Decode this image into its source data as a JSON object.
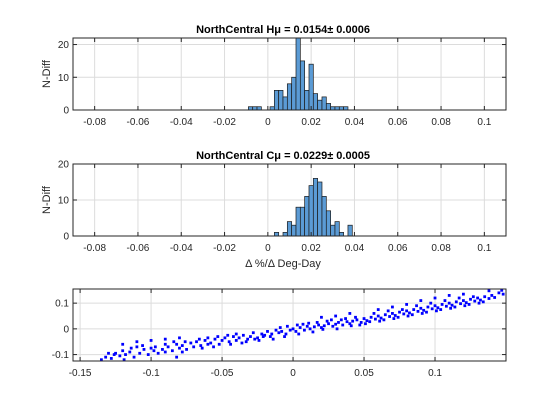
{
  "chart_data": [
    {
      "type": "bar",
      "title": "NorthCentral Hμ = 0.0154± 0.0006",
      "ylabel": "N-Diff",
      "xlabel": "",
      "xlim": [
        -0.09,
        0.11
      ],
      "ylim": [
        0,
        22
      ],
      "xticks": [
        -0.08,
        -0.06,
        -0.04,
        -0.02,
        0,
        0.02,
        0.04,
        0.06,
        0.08,
        0.1
      ],
      "xtick_labels": [
        "-0.08",
        "-0.06",
        "-0.04",
        "-0.02",
        "0",
        "0.02",
        "0.04",
        "0.06",
        "0.08",
        "0.1"
      ],
      "yticks": [
        0,
        10,
        20
      ],
      "ytick_labels": [
        "0",
        "10",
        "20"
      ],
      "grid": true,
      "bar_color": "#5b9bd5",
      "bin_width": 0.002,
      "bins": [
        {
          "x": -0.008,
          "v": 1
        },
        {
          "x": -0.006,
          "v": 1
        },
        {
          "x": -0.004,
          "v": 1
        },
        {
          "x": 0.002,
          "v": 1
        },
        {
          "x": 0.004,
          "v": 6
        },
        {
          "x": 0.006,
          "v": 6
        },
        {
          "x": 0.008,
          "v": 4
        },
        {
          "x": 0.01,
          "v": 8
        },
        {
          "x": 0.012,
          "v": 10
        },
        {
          "x": 0.014,
          "v": 22
        },
        {
          "x": 0.016,
          "v": 15
        },
        {
          "x": 0.018,
          "v": 6
        },
        {
          "x": 0.02,
          "v": 14
        },
        {
          "x": 0.022,
          "v": 5
        },
        {
          "x": 0.024,
          "v": 3
        },
        {
          "x": 0.026,
          "v": 4
        },
        {
          "x": 0.028,
          "v": 2
        },
        {
          "x": 0.03,
          "v": 1
        },
        {
          "x": 0.032,
          "v": 1
        },
        {
          "x": 0.034,
          "v": 1
        },
        {
          "x": 0.036,
          "v": 1
        }
      ]
    },
    {
      "type": "bar",
      "title": "NorthCentral Cμ = 0.0229± 0.0005",
      "ylabel": "N-Diff",
      "xlabel": "Δ %/Δ Deg-Day",
      "xlim": [
        -0.09,
        0.11
      ],
      "ylim": [
        0,
        20
      ],
      "xticks": [
        -0.08,
        -0.06,
        -0.04,
        -0.02,
        0,
        0.02,
        0.04,
        0.06,
        0.08,
        0.1
      ],
      "xtick_labels": [
        "-0.08",
        "-0.06",
        "-0.04",
        "-0.02",
        "0",
        "0.02",
        "0.04",
        "0.06",
        "0.08",
        "0.1"
      ],
      "yticks": [
        0,
        10,
        20
      ],
      "ytick_labels": [
        "0",
        "10",
        "20"
      ],
      "grid": true,
      "bar_color": "#5b9bd5",
      "bin_width": 0.002,
      "bins": [
        {
          "x": 0.004,
          "v": 1
        },
        {
          "x": 0.008,
          "v": 1
        },
        {
          "x": 0.01,
          "v": 4
        },
        {
          "x": 0.012,
          "v": 3
        },
        {
          "x": 0.014,
          "v": 8
        },
        {
          "x": 0.016,
          "v": 8
        },
        {
          "x": 0.018,
          "v": 11
        },
        {
          "x": 0.02,
          "v": 14
        },
        {
          "x": 0.022,
          "v": 16
        },
        {
          "x": 0.024,
          "v": 15
        },
        {
          "x": 0.026,
          "v": 11
        },
        {
          "x": 0.028,
          "v": 7
        },
        {
          "x": 0.03,
          "v": 3
        },
        {
          "x": 0.032,
          "v": 4
        },
        {
          "x": 0.034,
          "v": 1
        },
        {
          "x": 0.038,
          "v": 3
        }
      ]
    },
    {
      "type": "scatter",
      "title": "",
      "xlabel": "",
      "ylabel": "",
      "xlim": [
        -0.155,
        0.15
      ],
      "ylim": [
        -0.125,
        0.155
      ],
      "xticks": [
        -0.15,
        -0.1,
        -0.05,
        0,
        0.05,
        0.1
      ],
      "xtick_labels": [
        "-0.15",
        "-0.1",
        "-0.05",
        "0",
        "0.05",
        "0.1"
      ],
      "yticks": [
        -0.1,
        0,
        0.1
      ],
      "ytick_labels": [
        "-0.1",
        "0",
        "0.1"
      ],
      "grid": true,
      "marker_color": "#0000ff",
      "points": [
        [
          -0.135,
          -0.12
        ],
        [
          -0.132,
          -0.11
        ],
        [
          -0.128,
          -0.115
        ],
        [
          -0.125,
          -0.095
        ],
        [
          -0.122,
          -0.105
        ],
        [
          -0.12,
          -0.085
        ],
        [
          -0.118,
          -0.1
        ],
        [
          -0.115,
          -0.09
        ],
        [
          -0.112,
          -0.11
        ],
        [
          -0.11,
          -0.07
        ],
        [
          -0.108,
          -0.095
        ],
        [
          -0.105,
          -0.08
        ],
        [
          -0.102,
          -0.1
        ],
        [
          -0.1,
          -0.075
        ],
        [
          -0.098,
          -0.085
        ],
        [
          -0.095,
          -0.095
        ],
        [
          -0.092,
          -0.08
        ],
        [
          -0.09,
          -0.09
        ],
        [
          -0.088,
          -0.07
        ],
        [
          -0.085,
          -0.085
        ],
        [
          -0.082,
          -0.06
        ],
        [
          -0.08,
          -0.075
        ],
        [
          -0.078,
          -0.065
        ],
        [
          -0.075,
          -0.08
        ],
        [
          -0.072,
          -0.055
        ],
        [
          -0.07,
          -0.07
        ],
        [
          -0.068,
          -0.05
        ],
        [
          -0.065,
          -0.065
        ],
        [
          -0.062,
          -0.045
        ],
        [
          -0.06,
          -0.06
        ],
        [
          -0.058,
          -0.055
        ],
        [
          -0.055,
          -0.04
        ],
        [
          -0.052,
          -0.06
        ],
        [
          -0.05,
          -0.045
        ],
        [
          -0.048,
          -0.035
        ],
        [
          -0.045,
          -0.05
        ],
        [
          -0.042,
          -0.03
        ],
        [
          -0.04,
          -0.045
        ],
        [
          -0.038,
          -0.035
        ],
        [
          -0.035,
          -0.025
        ],
        [
          -0.032,
          -0.04
        ],
        [
          -0.03,
          -0.03
        ],
        [
          -0.028,
          -0.015
        ],
        [
          -0.025,
          -0.035
        ],
        [
          -0.022,
          -0.02
        ],
        [
          -0.02,
          -0.025
        ],
        [
          -0.018,
          -0.01
        ],
        [
          -0.015,
          -0.02
        ],
        [
          -0.012,
          -0.005
        ],
        [
          -0.01,
          -0.015
        ],
        [
          -0.008,
          -0.01
        ],
        [
          -0.005,
          -0.02
        ],
        [
          -0.002,
          -0.005
        ],
        [
          0,
          0.0
        ],
        [
          0.002,
          -0.01
        ],
        [
          0.005,
          0.005
        ],
        [
          0.008,
          -0.005
        ],
        [
          0.01,
          0.01
        ],
        [
          0.012,
          0.0
        ],
        [
          0.015,
          0.008
        ],
        [
          0.018,
          0.015
        ],
        [
          0.02,
          0.005
        ],
        [
          0.022,
          0.012
        ],
        [
          0.025,
          0.02
        ],
        [
          0.028,
          0.01
        ],
        [
          0.03,
          0.018
        ],
        [
          0.032,
          0.025
        ],
        [
          0.035,
          0.015
        ],
        [
          0.038,
          0.028
        ],
        [
          0.04,
          0.02
        ],
        [
          0.042,
          0.03
        ],
        [
          0.045,
          0.035
        ],
        [
          0.048,
          0.025
        ],
        [
          0.05,
          0.04
        ],
        [
          0.052,
          0.032
        ],
        [
          0.055,
          0.045
        ],
        [
          0.058,
          0.038
        ],
        [
          0.06,
          0.05
        ],
        [
          0.062,
          0.042
        ],
        [
          0.065,
          0.055
        ],
        [
          0.068,
          0.048
        ],
        [
          0.07,
          0.06
        ],
        [
          0.072,
          0.052
        ],
        [
          0.075,
          0.065
        ],
        [
          0.078,
          0.058
        ],
        [
          0.08,
          0.07
        ],
        [
          0.082,
          0.062
        ],
        [
          0.085,
          0.075
        ],
        [
          0.088,
          0.068
        ],
        [
          0.09,
          0.08
        ],
        [
          0.092,
          0.072
        ],
        [
          0.095,
          0.085
        ],
        [
          0.098,
          0.078
        ],
        [
          0.1,
          0.09
        ],
        [
          0.102,
          0.082
        ],
        [
          0.105,
          0.095
        ],
        [
          0.108,
          0.088
        ],
        [
          0.11,
          0.1
        ],
        [
          0.112,
          0.092
        ],
        [
          0.115,
          0.105
        ],
        [
          0.118,
          0.098
        ],
        [
          0.12,
          0.11
        ],
        [
          0.122,
          0.102
        ],
        [
          0.125,
          0.115
        ],
        [
          0.128,
          0.108
        ],
        [
          0.13,
          0.12
        ],
        [
          0.132,
          0.112
        ],
        [
          0.135,
          0.125
        ],
        [
          0.138,
          0.118
        ],
        [
          0.14,
          0.13
        ],
        [
          0.142,
          0.122
        ],
        [
          0.145,
          0.14
        ],
        [
          0.148,
          0.135
        ],
        [
          0.147,
          0.15
        ],
        [
          0.138,
          0.148
        ],
        [
          -0.13,
          -0.095
        ],
        [
          -0.126,
          -0.1
        ],
        [
          -0.119,
          -0.12
        ],
        [
          -0.114,
          -0.075
        ],
        [
          -0.106,
          -0.065
        ],
        [
          -0.097,
          -0.07
        ],
        [
          -0.09,
          -0.06
        ],
        [
          -0.084,
          -0.05
        ],
        [
          -0.076,
          -0.05
        ],
        [
          -0.066,
          -0.04
        ],
        [
          -0.06,
          -0.035
        ],
        [
          -0.053,
          -0.03
        ],
        [
          -0.046,
          -0.025
        ],
        [
          -0.04,
          -0.02
        ],
        [
          -0.033,
          -0.05
        ],
        [
          -0.027,
          -0.04
        ],
        [
          -0.021,
          -0.03
        ],
        [
          -0.016,
          -0.03
        ],
        [
          -0.009,
          0.005
        ],
        [
          -0.004,
          0.01
        ],
        [
          0.003,
          0.015
        ],
        [
          0.007,
          0.018
        ],
        [
          0.011,
          0.022
        ],
        [
          0.014,
          -0.012
        ],
        [
          0.017,
          0.025
        ],
        [
          0.021,
          -0.002
        ],
        [
          0.024,
          0.03
        ],
        [
          0.027,
          0.035
        ],
        [
          0.031,
          0.0
        ],
        [
          0.034,
          0.035
        ],
        [
          0.037,
          0.04
        ],
        [
          0.041,
          0.012
        ],
        [
          0.044,
          0.045
        ],
        [
          0.047,
          0.015
        ],
        [
          0.051,
          0.02
        ],
        [
          0.054,
          0.028
        ],
        [
          0.057,
          0.06
        ],
        [
          0.061,
          0.03
        ],
        [
          0.064,
          0.035
        ],
        [
          0.067,
          0.07
        ],
        [
          0.071,
          0.04
        ],
        [
          0.074,
          0.045
        ],
        [
          0.077,
          0.075
        ],
        [
          0.081,
          0.05
        ],
        [
          0.084,
          0.055
        ],
        [
          0.087,
          0.09
        ],
        [
          0.091,
          0.06
        ],
        [
          0.094,
          0.065
        ],
        [
          0.097,
          0.1
        ],
        [
          0.101,
          0.07
        ],
        [
          0.104,
          0.075
        ],
        [
          0.107,
          0.11
        ],
        [
          0.111,
          0.08
        ],
        [
          0.114,
          0.085
        ],
        [
          0.117,
          0.12
        ],
        [
          0.121,
          0.09
        ],
        [
          0.124,
          0.095
        ],
        [
          0.127,
          0.125
        ],
        [
          0.131,
          0.1
        ],
        [
          0.134,
          0.105
        ],
        [
          -0.082,
          -0.11
        ],
        [
          -0.078,
          -0.09
        ],
        [
          -0.064,
          -0.075
        ],
        [
          -0.056,
          -0.07
        ],
        [
          -0.044,
          -0.06
        ],
        [
          -0.036,
          -0.055
        ],
        [
          -0.024,
          -0.045
        ],
        [
          -0.014,
          -0.04
        ],
        [
          -0.006,
          -0.03
        ],
        [
          0.004,
          -0.02
        ],
        [
          -0.12,
          -0.06
        ],
        [
          -0.11,
          -0.05
        ],
        [
          -0.1,
          -0.045
        ],
        [
          -0.09,
          -0.04
        ],
        [
          -0.08,
          -0.035
        ],
        [
          0.02,
          0.045
        ],
        [
          0.03,
          0.05
        ],
        [
          0.04,
          0.06
        ],
        [
          0.06,
          0.075
        ],
        [
          0.07,
          0.085
        ],
        [
          0.08,
          0.095
        ],
        [
          0.09,
          0.11
        ],
        [
          0.1,
          0.12
        ],
        [
          0.11,
          0.13
        ],
        [
          0.12,
          0.135
        ]
      ]
    }
  ]
}
